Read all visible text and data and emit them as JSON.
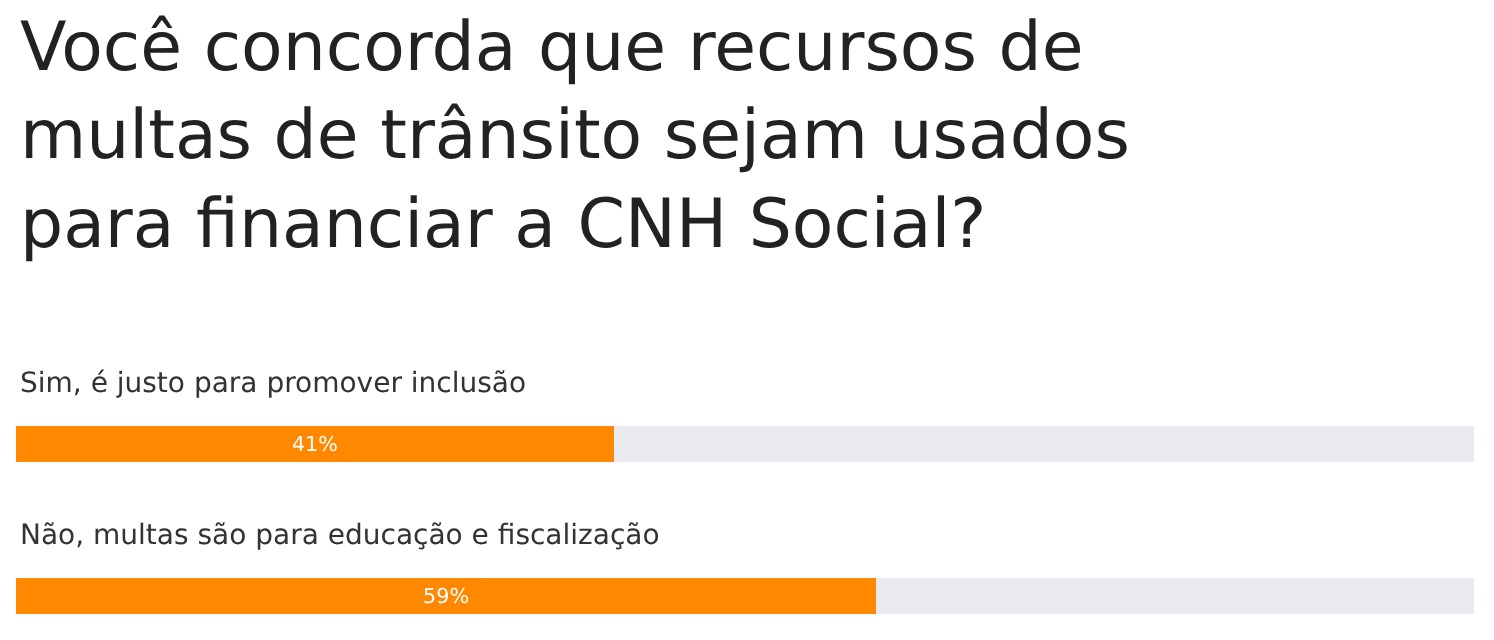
{
  "chart_data": {
    "type": "bar",
    "orientation": "horizontal",
    "stacked": true,
    "xlim": [
      0,
      100
    ],
    "tick_labels": false,
    "title": "Você concorda que recursos de multas de trânsito sejam usados para financiar a CNH Social?",
    "categories": [
      "Sim, é justo para promover inclusão",
      "Não, multas são para educação e fiscalização"
    ],
    "series": [
      {
        "color": "#ff8800",
        "values": [
          41,
          59
        ],
        "value_labels": [
          "41%",
          "59%"
        ]
      },
      {
        "color": "#e9ebee",
        "values": [
          59,
          41
        ]
      }
    ]
  }
}
